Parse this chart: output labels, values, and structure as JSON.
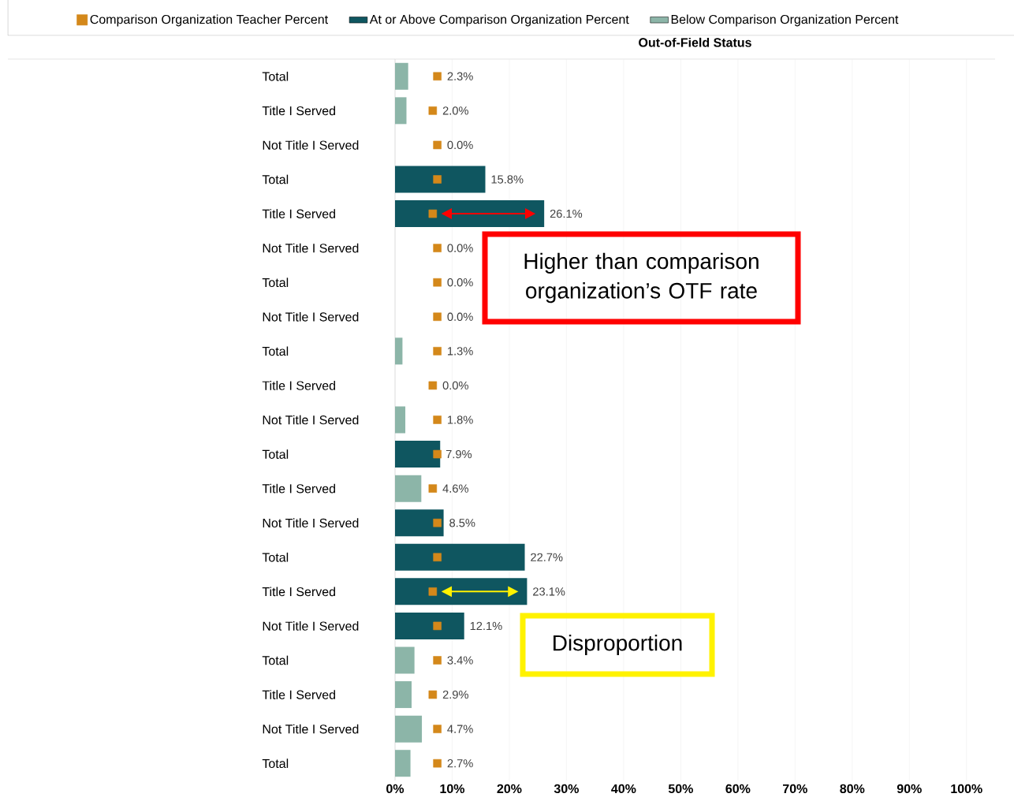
{
  "chart_data": {
    "type": "bar",
    "orientation": "horizontal",
    "title": "Out-of-Field Status",
    "categories": [
      "Total",
      "Title I Served",
      "Not Title I Served",
      "Total",
      "Title I Served",
      "Not Title I Served",
      "Total",
      "Not Title I Served",
      "Total",
      "Title I Served",
      "Not Title I Served",
      "Total",
      "Title I Served",
      "Not Title I Served",
      "Total",
      "Title I Served",
      "Not Title I Served",
      "Total",
      "Title I Served",
      "Not Title I Served",
      "Total"
    ],
    "series": [
      {
        "name": "Comparison Organization Teacher Percent",
        "type": "scatter",
        "color": "#d4881a",
        "values": [
          7.4,
          6.6,
          7.4,
          7.4,
          6.6,
          7.4,
          7.4,
          7.4,
          7.4,
          6.6,
          7.4,
          7.4,
          6.6,
          7.4,
          7.4,
          6.6,
          7.4,
          7.4,
          6.6,
          7.4,
          7.4
        ]
      },
      {
        "name": "At or Above Comparison Organization Percent",
        "color": "#0f5660",
        "values": [
          null,
          null,
          null,
          15.8,
          26.1,
          null,
          null,
          null,
          null,
          null,
          null,
          7.9,
          null,
          8.5,
          22.7,
          23.1,
          12.1,
          null,
          null,
          null,
          null
        ],
        "value_labels": [
          null,
          null,
          null,
          "15.8%",
          "26.1%",
          null,
          null,
          null,
          null,
          null,
          null,
          "7.9%",
          null,
          "8.5%",
          "22.7%",
          "23.1%",
          "12.1%",
          null,
          null,
          null,
          null
        ]
      },
      {
        "name": "Below Comparison Organization Percent",
        "color": "#8cb5a8",
        "values": [
          2.3,
          2.0,
          0.0,
          null,
          null,
          0.0,
          0.0,
          0.0,
          1.3,
          0.0,
          1.8,
          null,
          4.6,
          null,
          null,
          null,
          null,
          3.4,
          2.9,
          4.7,
          2.7
        ],
        "value_labels": [
          "2.3%",
          "2.0%",
          "0.0%",
          null,
          null,
          "0.0%",
          "0.0%",
          "0.0%",
          "1.3%",
          "0.0%",
          "1.8%",
          null,
          "4.6%",
          null,
          null,
          null,
          null,
          "3.4%",
          "2.9%",
          "4.7%",
          "2.7%"
        ]
      }
    ],
    "xlim": [
      0,
      105
    ],
    "xticks": [
      {
        "value": 0,
        "label": "0%"
      },
      {
        "value": 10,
        "label": "10%"
      },
      {
        "value": 20,
        "label": "20%"
      },
      {
        "value": 30,
        "label": "30%"
      },
      {
        "value": 40,
        "label": "40%"
      },
      {
        "value": 50,
        "label": "50%"
      },
      {
        "value": 60,
        "label": "60%"
      },
      {
        "value": 70,
        "label": "70%"
      },
      {
        "value": 80,
        "label": "80%"
      },
      {
        "value": 90,
        "label": "90%"
      },
      {
        "value": 100,
        "label": "100%"
      }
    ],
    "grid": "x",
    "legend": "top",
    "marker": "square",
    "annotations": [
      "Higher than comparison organization’s OTF rate",
      "Disproportion"
    ]
  }
}
